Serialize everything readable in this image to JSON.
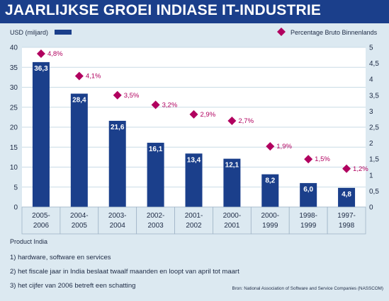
{
  "title": "JAARLIJKSE GROEI INDIASE IT-INDUSTRIE",
  "colors": {
    "bar": "#1b3f8b",
    "diamond": "#b1005f",
    "background": "#dce9f1",
    "plot_bg": "#ffffff",
    "grid": "#c9dbe6"
  },
  "chart_data": {
    "type": "bar",
    "categories": [
      "2005-\n2006",
      "2004-\n2005",
      "2003-\n2004",
      "2002-\n2003",
      "2001-\n2002",
      "2000-\n2001",
      "2000-\n1999",
      "1998-\n1999",
      "1997-\n1998"
    ],
    "series": [
      {
        "name": "USD (miljard)",
        "type": "bar",
        "axis": "left",
        "values": [
          36.3,
          28.4,
          21.6,
          16.1,
          13.4,
          12.1,
          8.2,
          6.0,
          4.8
        ],
        "labels": [
          "36,3",
          "28,4",
          "21,6",
          "16,1",
          "13,4",
          "12,1",
          "8,2",
          "6,0",
          "4,8"
        ]
      },
      {
        "name": "Percentage Bruto Binnenlands",
        "type": "scatter",
        "marker": "diamond",
        "axis": "right",
        "values": [
          4.8,
          4.1,
          3.5,
          3.2,
          2.9,
          2.7,
          1.9,
          1.5,
          1.2
        ],
        "labels": [
          "4,8%",
          "4,1%",
          "3,5%",
          "3,2%",
          "2,9%",
          "2,7%",
          "1,9%",
          "1,5%",
          "1,2%"
        ]
      }
    ],
    "ylim": [
      0,
      40
    ],
    "yticks": [
      "0",
      "5",
      "10",
      "15",
      "20",
      "25",
      "30",
      "35",
      "40"
    ],
    "y2lim": [
      0,
      5
    ],
    "y2ticks": [
      "0",
      "0,5",
      "1",
      "1,5",
      "2",
      "2,5",
      "3",
      "3,5",
      "4",
      "4,5",
      "5"
    ],
    "xlabel": "Product India",
    "grid": true,
    "legend": [
      "top-left",
      "top-right"
    ]
  },
  "footnotes": [
    "1) hardware, software en services",
    "2) het fiscale jaar in India beslaat twaalf maanden en loopt van april tot maart",
    "3) het cijfer van 2006 betreft een schatting"
  ],
  "source": "Bron: National Association of Software and Service Companies (NASSCOM)"
}
